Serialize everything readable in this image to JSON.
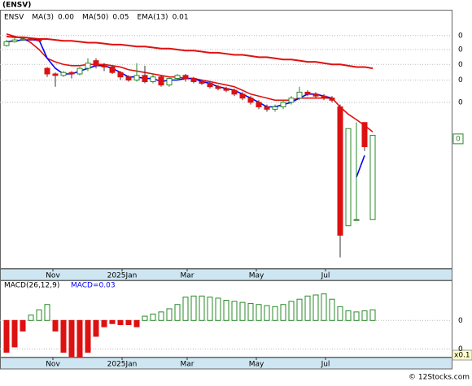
{
  "chart_data": [
    {
      "type": "candlestick",
      "title": "(ENSV)",
      "log_scale": true,
      "legend": [
        {
          "name": "ENSV",
          "color": "#000000"
        },
        {
          "name": "MA(3)",
          "value": "0.00",
          "color": "#0000ff"
        },
        {
          "name": "MA(50)",
          "value": "0.05",
          "color": "#e01010"
        },
        {
          "name": "EMA(13)",
          "value": "0.01",
          "color": "#e01010"
        }
      ],
      "ylim": [
        0.003,
        0.12
      ],
      "yticks": [
        {
          "value": 0.083,
          "label": "0"
        },
        {
          "value": 0.068,
          "label": "0"
        },
        {
          "value": 0.055,
          "label": "0"
        },
        {
          "value": 0.044,
          "label": "0"
        },
        {
          "value": 0.032,
          "label": "0"
        }
      ],
      "last_price": {
        "value": 0.019,
        "label": "0"
      },
      "xlim": [
        -0.8,
        54.7
      ],
      "xticks": [
        {
          "value": 5.7,
          "label": "Nov"
        },
        {
          "value": 14.2,
          "label": "2025Jan"
        },
        {
          "value": 22.2,
          "label": "Mar"
        },
        {
          "value": 30.7,
          "label": "May"
        },
        {
          "value": 39.2,
          "label": "Jul"
        }
      ],
      "up_color": "#2a8a2a",
      "down_color": "#dd1111",
      "open": [
        0.072,
        0.076,
        0.078,
        0.079,
        0.078,
        0.052,
        0.048,
        0.047,
        0.049,
        0.048,
        0.052,
        0.058,
        0.054,
        0.053,
        0.049,
        0.046,
        0.044,
        0.047,
        0.043,
        0.046,
        0.041,
        0.045,
        0.047,
        0.045,
        0.043,
        0.042,
        0.04,
        0.039,
        0.038,
        0.036,
        0.034,
        0.032,
        0.03,
        0.029,
        0.03,
        0.032,
        0.034,
        0.037,
        0.036,
        0.035,
        0.034,
        0.03,
        0.0055,
        0.006,
        0.024,
        0.006
      ],
      "high": [
        0.078,
        0.08,
        0.081,
        0.08,
        0.079,
        0.053,
        0.049,
        0.05,
        0.05,
        0.053,
        0.06,
        0.06,
        0.056,
        0.054,
        0.05,
        0.047,
        0.056,
        0.054,
        0.048,
        0.047,
        0.046,
        0.048,
        0.048,
        0.046,
        0.044,
        0.043,
        0.041,
        0.04,
        0.039,
        0.037,
        0.035,
        0.033,
        0.031,
        0.031,
        0.033,
        0.035,
        0.04,
        0.038,
        0.037,
        0.036,
        0.035,
        0.031,
        0.022,
        0.024,
        0.024,
        0.02
      ],
      "low": [
        0.071,
        0.075,
        0.077,
        0.077,
        0.076,
        0.046,
        0.04,
        0.046,
        0.045,
        0.047,
        0.05,
        0.052,
        0.05,
        0.048,
        0.044,
        0.043,
        0.043,
        0.042,
        0.042,
        0.04,
        0.04,
        0.044,
        0.043,
        0.042,
        0.041,
        0.039,
        0.038,
        0.037,
        0.035,
        0.033,
        0.031,
        0.029,
        0.028,
        0.028,
        0.029,
        0.031,
        0.033,
        0.035,
        0.034,
        0.033,
        0.032,
        0.0035,
        0.0055,
        0.006,
        0.016,
        0.006
      ],
      "close": [
        0.076,
        0.078,
        0.079,
        0.078,
        0.077,
        0.048,
        0.047,
        0.049,
        0.048,
        0.052,
        0.056,
        0.054,
        0.053,
        0.049,
        0.046,
        0.044,
        0.047,
        0.043,
        0.046,
        0.041,
        0.045,
        0.047,
        0.045,
        0.043,
        0.042,
        0.04,
        0.039,
        0.038,
        0.036,
        0.034,
        0.032,
        0.03,
        0.029,
        0.03,
        0.032,
        0.034,
        0.037,
        0.036,
        0.035,
        0.034,
        0.033,
        0.0048,
        0.022,
        0.006,
        0.017,
        0.02
      ],
      "lines": [
        {
          "name": "MA(50)",
          "color": "#e01010",
          "values": [
            0.082,
            0.081,
            0.081,
            0.08,
            0.079,
            0.079,
            0.078,
            0.077,
            0.077,
            0.076,
            0.075,
            0.075,
            0.074,
            0.073,
            0.073,
            0.072,
            0.071,
            0.071,
            0.07,
            0.069,
            0.069,
            0.068,
            0.067,
            0.067,
            0.066,
            0.065,
            0.065,
            0.064,
            0.063,
            0.063,
            0.062,
            0.061,
            0.061,
            0.06,
            0.059,
            0.059,
            0.058,
            0.057,
            0.057,
            0.056,
            0.055,
            0.055,
            0.054,
            0.053,
            0.053,
            0.052
          ]
        },
        {
          "name": "EMA(13)",
          "color": "#e01010",
          "values": [
            0.085,
            0.082,
            0.08,
            0.075,
            0.068,
            0.06,
            0.057,
            0.055,
            0.054,
            0.054,
            0.055,
            0.055,
            0.055,
            0.054,
            0.053,
            0.051,
            0.05,
            0.049,
            0.048,
            0.047,
            0.046,
            0.046,
            0.045,
            0.045,
            0.044,
            0.043,
            0.042,
            0.041,
            0.04,
            0.038,
            0.036,
            0.035,
            0.034,
            0.033,
            0.033,
            0.033,
            0.034,
            0.034,
            0.034,
            0.034,
            0.034,
            0.03,
            0.027,
            0.025,
            0.023,
            0.021
          ]
        },
        {
          "name": "MA(3)",
          "color": "#0000ff",
          "values": [
            0.076,
            0.077,
            0.078,
            0.078,
            0.078,
            0.06,
            0.052,
            0.048,
            0.048,
            0.05,
            0.052,
            0.054,
            0.054,
            0.052,
            0.049,
            0.046,
            0.046,
            0.045,
            0.045,
            0.043,
            0.044,
            0.044,
            0.045,
            0.045,
            0.043,
            0.042,
            0.04,
            0.039,
            0.038,
            0.036,
            0.034,
            0.032,
            0.03,
            0.03,
            0.031,
            0.032,
            0.034,
            0.036,
            0.036,
            0.035,
            0.034,
            null,
            null,
            0.011,
            0.015,
            null
          ]
        }
      ]
    },
    {
      "type": "bar",
      "title": "MACD(26,12,9)",
      "subtitle": "MACD=0.03",
      "scale_label": "x0.1",
      "ylim": [
        -0.0035,
        0.0037
      ],
      "yticks": [
        0,
        {
          "value": -0.0027,
          "label": "0"
        }
      ],
      "xlim": [
        -0.8,
        54.7
      ],
      "xticks": [
        {
          "value": 5.7,
          "label": "Nov"
        },
        {
          "value": 14.2,
          "label": "2025Jan"
        },
        {
          "value": 22.2,
          "label": "Mar"
        },
        {
          "value": 30.7,
          "label": "May"
        },
        {
          "value": 39.2,
          "label": "Jul"
        }
      ],
      "up_color": "#2a8a2a",
      "down_color": "#dd1111",
      "values": [
        -0.003,
        -0.0025,
        -0.001,
        0.0005,
        0.001,
        0.0015,
        -0.001,
        -0.003,
        -0.0034,
        -0.0035,
        -0.003,
        -0.0015,
        -0.0006,
        -0.0003,
        -0.0004,
        -0.0004,
        -0.0006,
        0.0004,
        0.0006,
        0.0008,
        0.0011,
        0.0015,
        0.0022,
        0.0023,
        0.0023,
        0.0022,
        0.0021,
        0.0019,
        0.0018,
        0.0017,
        0.0016,
        0.0015,
        0.0014,
        0.0013,
        0.0015,
        0.0018,
        0.002,
        0.0023,
        0.0024,
        0.0025,
        0.002,
        0.0013,
        0.0009,
        0.0008,
        0.0009,
        0.001
      ]
    }
  ],
  "footer": "© 12Stocks.com"
}
